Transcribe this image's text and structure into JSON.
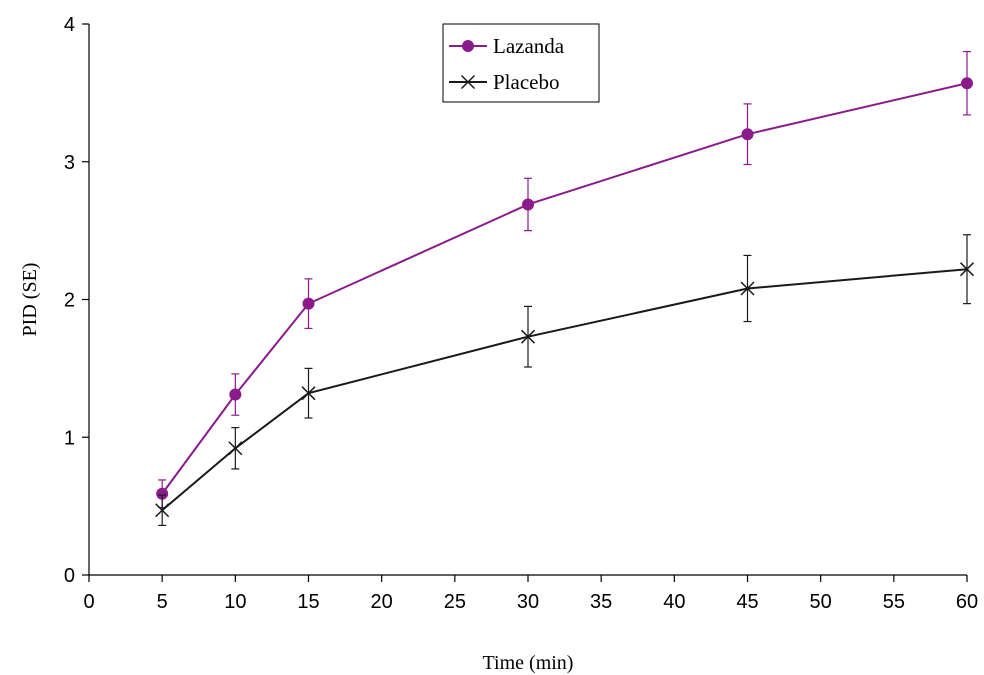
{
  "chart_data": {
    "type": "line",
    "title": "",
    "xlabel": "Time (min)",
    "ylabel": "PID (SE)",
    "xlim": [
      0,
      60
    ],
    "ylim": [
      0,
      4
    ],
    "x_ticks": [
      "0",
      "5",
      "10",
      "15",
      "20",
      "25",
      "30",
      "35",
      "40",
      "45",
      "50",
      "55",
      "60"
    ],
    "y_ticks": [
      "0",
      "1",
      "2",
      "3",
      "4"
    ],
    "grid": false,
    "legend_position": "top-center",
    "x": [
      5,
      10,
      15,
      30,
      45,
      60
    ],
    "series": [
      {
        "name": "Lazanda",
        "color": "#8B1A8B",
        "marker": "circle",
        "values": [
          0.59,
          1.31,
          1.97,
          2.69,
          3.2,
          3.57
        ],
        "error": [
          0.1,
          0.15,
          0.18,
          0.19,
          0.22,
          0.23
        ]
      },
      {
        "name": "Placebo",
        "color": "#1a1a1a",
        "marker": "x",
        "values": [
          0.47,
          0.92,
          1.32,
          1.73,
          2.08,
          2.22
        ],
        "error": [
          0.11,
          0.15,
          0.18,
          0.22,
          0.24,
          0.25
        ]
      }
    ]
  }
}
